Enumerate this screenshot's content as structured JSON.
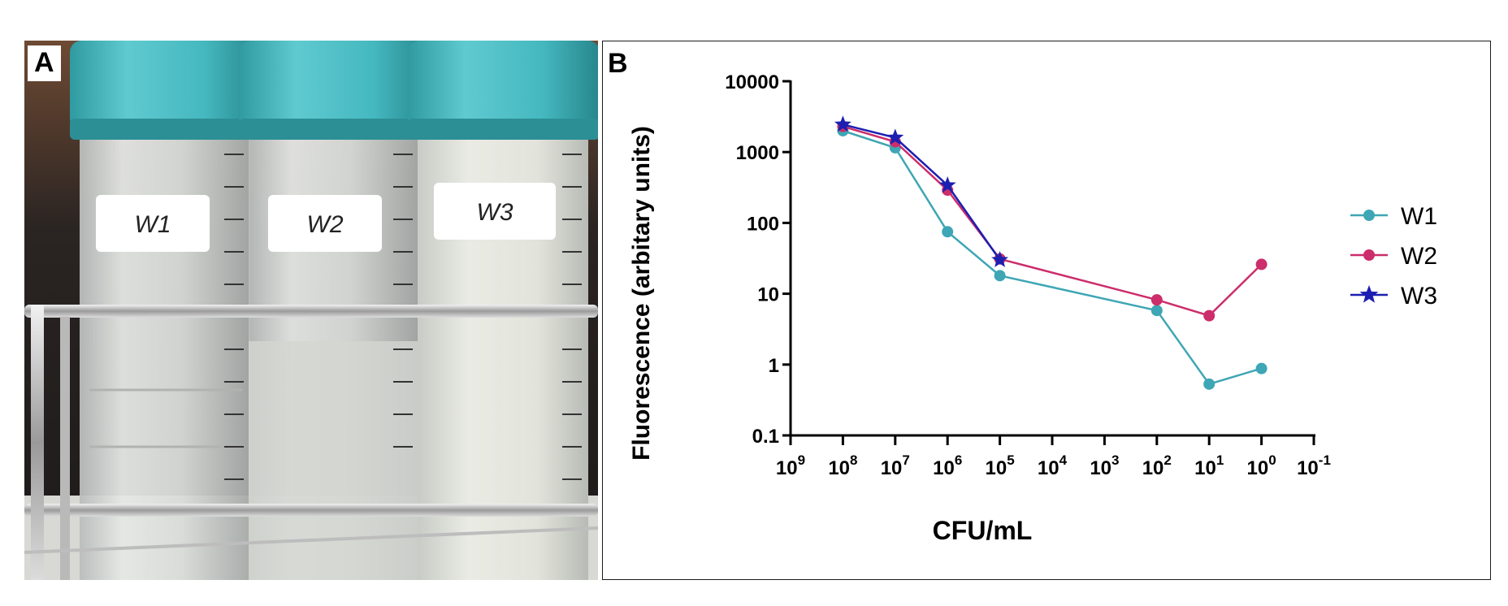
{
  "panels": {
    "a": {
      "label": "A",
      "tube_labels": [
        "W1",
        "W2",
        "W3"
      ]
    },
    "b": {
      "label": "B"
    }
  },
  "chart_data": {
    "type": "line",
    "title": "",
    "xlabel": "CFU/mL",
    "ylabel": "Fluorescence (arbitary units)",
    "x_scale": "log",
    "x_reversed": true,
    "y_scale": "log",
    "xlim_exponents": [
      9,
      -1
    ],
    "x_tick_labels": [
      {
        "base": "10",
        "exp": "9"
      },
      {
        "base": "10",
        "exp": "8"
      },
      {
        "base": "10",
        "exp": "7"
      },
      {
        "base": "10",
        "exp": "6"
      },
      {
        "base": "10",
        "exp": "5"
      },
      {
        "base": "10",
        "exp": "4"
      },
      {
        "base": "10",
        "exp": "3"
      },
      {
        "base": "10",
        "exp": "2"
      },
      {
        "base": "10",
        "exp": "1"
      },
      {
        "base": "10",
        "exp": "0"
      },
      {
        "base": "10",
        "exp": "-1"
      }
    ],
    "ylim": [
      0.1,
      10000
    ],
    "y_tick_labels": [
      "10000",
      "1000",
      "100",
      "10",
      "1",
      "0.1"
    ],
    "grid": false,
    "legend_position": "right",
    "series": [
      {
        "name": "W1",
        "color": "#3ea6b4",
        "marker": "circle",
        "x": [
          100000000,
          10000000,
          1000000,
          100000,
          100,
          10,
          1
        ],
        "y": [
          2000,
          1150,
          75,
          18,
          5.8,
          0.53,
          0.88
        ]
      },
      {
        "name": "W2",
        "color": "#cc2d6b",
        "marker": "circle",
        "x": [
          100000000,
          10000000,
          1000000,
          100000,
          100,
          10,
          1
        ],
        "y": [
          2300,
          1400,
          290,
          31,
          8.2,
          4.9,
          26
        ]
      },
      {
        "name": "W3",
        "color": "#1c1fb0",
        "marker": "star",
        "x": [
          100000000,
          10000000,
          1000000,
          100000
        ],
        "y": [
          2450,
          1600,
          340,
          30
        ]
      }
    ]
  }
}
